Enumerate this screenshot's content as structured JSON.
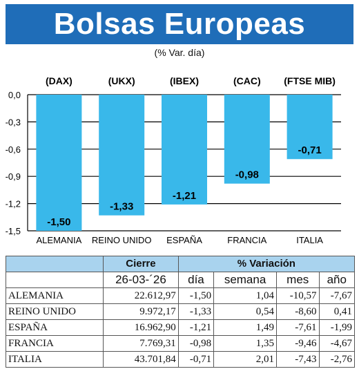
{
  "header": {
    "title": "Bolsas Europeas",
    "subtitle": "(% Var. día)"
  },
  "chart_data": {
    "type": "bar",
    "categories": [
      "ALEMANIA",
      "REINO UNIDO",
      "ESPAÑA",
      "FRANCIA",
      "ITALIA"
    ],
    "indices": [
      "(DAX)",
      "(UKX)",
      "(IBEX)",
      "(CAC)",
      "(FTSE MIB)"
    ],
    "values": [
      -1.5,
      -1.33,
      -1.21,
      -0.98,
      -0.71
    ],
    "value_labels": [
      "-1,50",
      "-1,33",
      "-1,21",
      "-0,98",
      "-0,71"
    ],
    "ylim": [
      -1.5,
      0.0
    ],
    "y_ticks": [
      0.0,
      -0.3,
      -0.6,
      -0.9,
      -1.2,
      -1.5
    ],
    "y_tick_labels": [
      "0,0",
      "-0,3",
      "-0,6",
      "-0,9",
      "-1,2",
      "-1,5"
    ],
    "grid": true,
    "bar_color": "#39b8ea"
  },
  "table": {
    "group_headers": {
      "cierre": "Cierre",
      "variacion": "% Variación"
    },
    "subheaders": {
      "date": "26-03-´26",
      "dia": "día",
      "semana": "semana",
      "mes": "mes",
      "ano": "año"
    },
    "header_color": "#a9d3ee",
    "rows": [
      {
        "country": "ALEMANIA",
        "cierre": "22.612,97",
        "dia": "-1,50",
        "semana": "1,04",
        "mes": "-10,57",
        "ano": "-7,67"
      },
      {
        "country": "REINO UNIDO",
        "cierre": "9.972,17",
        "dia": "-1,33",
        "semana": "0,54",
        "mes": "-8,60",
        "ano": "0,41"
      },
      {
        "country": "ESPAÑA",
        "cierre": "16.962,90",
        "dia": "-1,21",
        "semana": "1,49",
        "mes": "-7,61",
        "ano": "-1,99"
      },
      {
        "country": "FRANCIA",
        "cierre": "7.769,31",
        "dia": "-0,98",
        "semana": "1,35",
        "mes": "-9,46",
        "ano": "-4,67"
      },
      {
        "country": "ITALIA",
        "cierre": "43.701,84",
        "dia": "-0,71",
        "semana": "2,01",
        "mes": "-7,43",
        "ano": "-2,76"
      }
    ]
  }
}
